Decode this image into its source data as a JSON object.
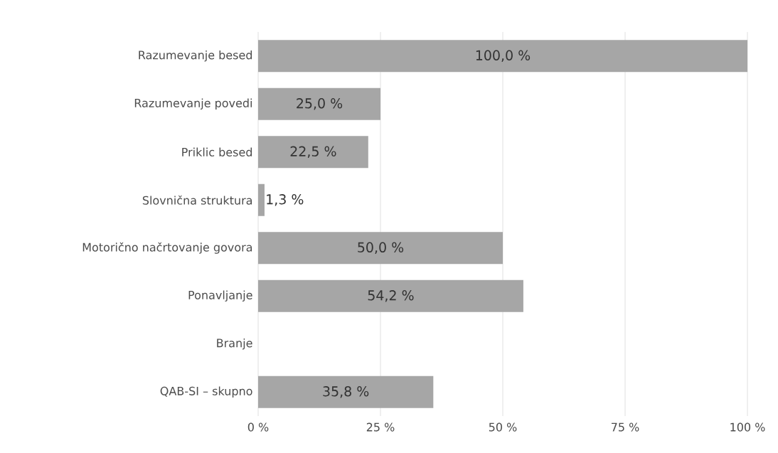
{
  "chart_data": {
    "type": "bar",
    "orientation": "horizontal",
    "categories": [
      "Razumevanje besed",
      "Razumevanje povedi",
      "Priklic besed",
      "Slovnična struktura",
      "Motorično načrtovanje govora",
      "Ponavljanje",
      "Branje",
      "QAB-SI – skupno"
    ],
    "values": [
      100,
      25,
      22.5,
      1.3,
      50,
      54.2,
      null,
      35.8
    ],
    "value_labels": [
      "100,0 %",
      "25,0 %",
      "22,5 %",
      "1,3 %",
      "50,0 %",
      "54,2 %",
      null,
      "35,8 %"
    ],
    "color": "#a6a6a6",
    "xlim": [
      0,
      100
    ],
    "xticks": [
      {
        "value": 0,
        "label": "0 %"
      },
      {
        "value": 25,
        "label": "25 %"
      },
      {
        "value": 50,
        "label": "50 %"
      },
      {
        "value": 75,
        "label": "75 %"
      },
      {
        "value": 100,
        "label": "100 %"
      }
    ],
    "grid": "x"
  }
}
